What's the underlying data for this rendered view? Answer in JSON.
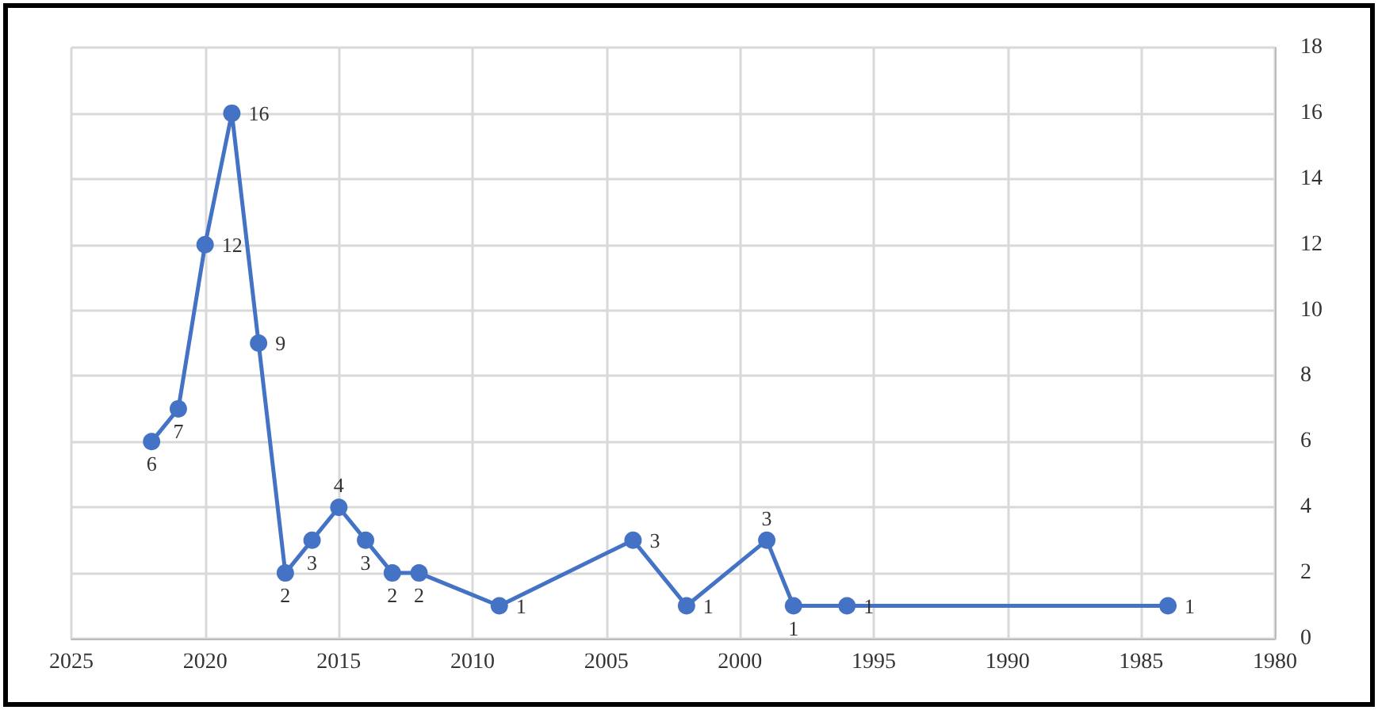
{
  "chart_data": {
    "type": "line",
    "x": [
      2022,
      2021,
      2020,
      2019,
      2018,
      2017,
      2016,
      2015,
      2014,
      2013,
      2012,
      2009,
      2004,
      2002,
      1999,
      1998,
      1996,
      1984
    ],
    "values": [
      6,
      7,
      12,
      16,
      9,
      2,
      3,
      4,
      3,
      2,
      2,
      1,
      3,
      1,
      3,
      1,
      1,
      1
    ],
    "color": "#4472c4",
    "xlim": [
      2025,
      1980
    ],
    "xticks": [
      2025,
      2020,
      2015,
      2010,
      2005,
      2000,
      1995,
      1990,
      1985,
      1980
    ],
    "ylim": [
      0,
      18
    ],
    "yticks": [
      0,
      2,
      4,
      6,
      8,
      10,
      12,
      14,
      16,
      18
    ],
    "grid": true,
    "marker": "circle",
    "line_style": "solid",
    "data_labels": true
  }
}
